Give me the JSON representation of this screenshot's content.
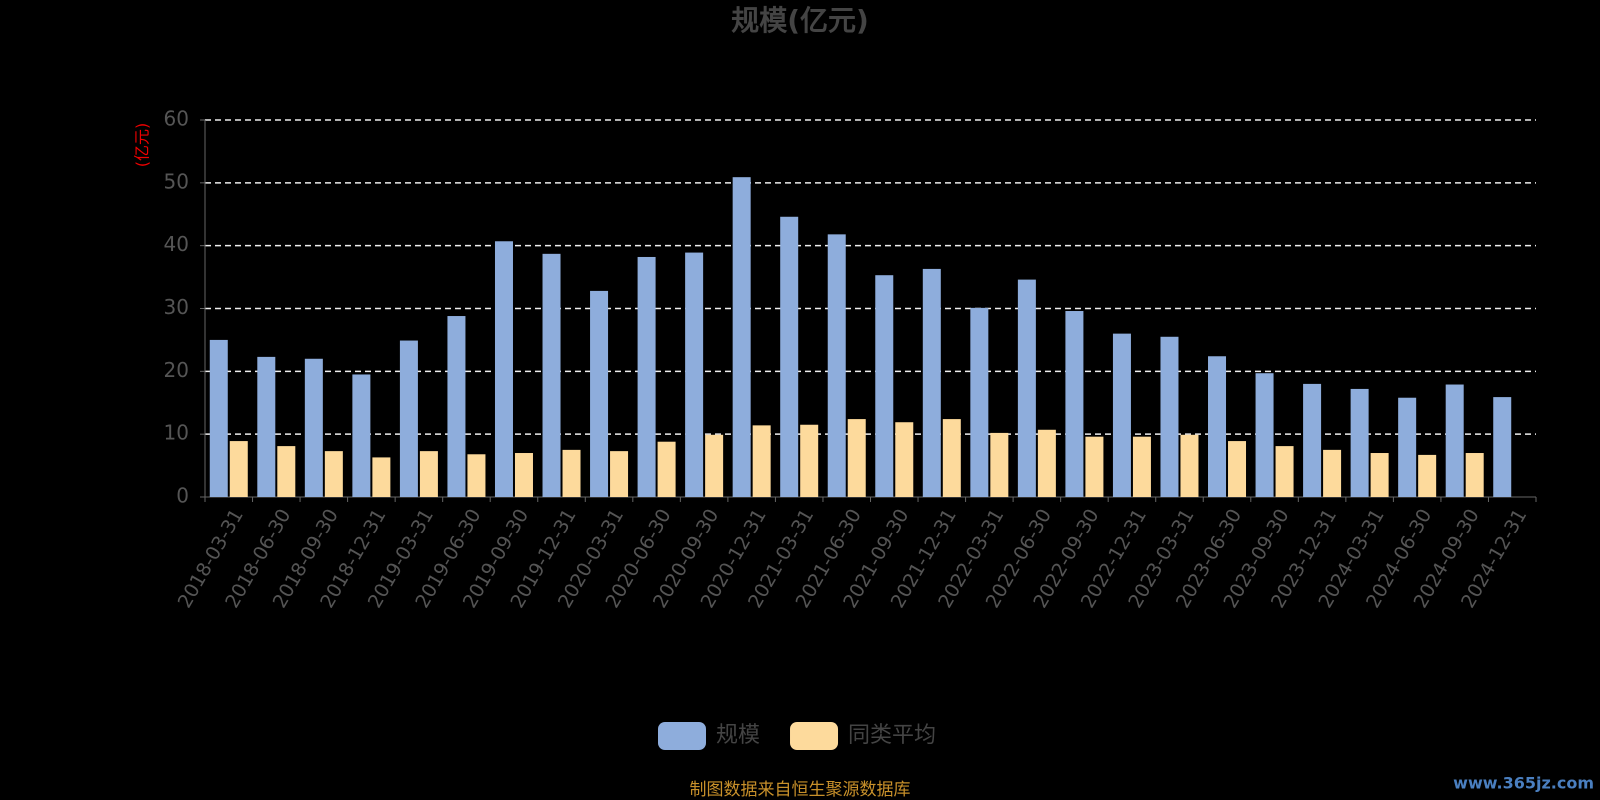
{
  "chart_data": {
    "type": "bar",
    "title": "规模(亿元)",
    "y_unit_label": "(亿元)",
    "categories": [
      "2018-03-31",
      "2018-06-30",
      "2018-09-30",
      "2018-12-31",
      "2019-03-31",
      "2019-06-30",
      "2019-09-30",
      "2019-12-31",
      "2020-03-31",
      "2020-06-30",
      "2020-09-30",
      "2020-12-31",
      "2021-03-31",
      "2021-06-30",
      "2021-09-30",
      "2021-12-31",
      "2022-03-31",
      "2022-06-30",
      "2022-09-30",
      "2022-12-31",
      "2023-03-31",
      "2023-06-30",
      "2023-09-30",
      "2023-12-31",
      "2024-03-31",
      "2024-06-30",
      "2024-09-30",
      "2024-12-31"
    ],
    "series": [
      {
        "name": "规模",
        "color": "#8eaddc",
        "values": [
          25.0,
          22.3,
          22.0,
          19.5,
          24.9,
          28.8,
          40.7,
          38.7,
          32.8,
          38.2,
          38.9,
          50.9,
          44.6,
          41.8,
          35.3,
          36.3,
          30.1,
          34.6,
          29.6,
          26.0,
          25.5,
          22.4,
          19.7,
          18.0,
          17.2,
          15.8,
          17.9,
          15.9
        ]
      },
      {
        "name": "同类平均",
        "color": "#fdda9c",
        "values": [
          8.9,
          8.1,
          7.3,
          6.3,
          7.3,
          6.8,
          7.0,
          7.5,
          7.3,
          8.8,
          9.9,
          11.4,
          11.5,
          12.4,
          11.9,
          12.4,
          10.2,
          10.7,
          9.6,
          9.6,
          9.9,
          8.9,
          8.1,
          7.5,
          7.0,
          6.7,
          7.0,
          null
        ]
      }
    ],
    "ylim": [
      0,
      60
    ],
    "yticks": [
      0,
      10,
      20,
      30,
      40,
      50,
      60
    ],
    "grid": true,
    "source_note": "制图数据来自恒生聚源数据库",
    "watermark": "www.365jz.com"
  }
}
